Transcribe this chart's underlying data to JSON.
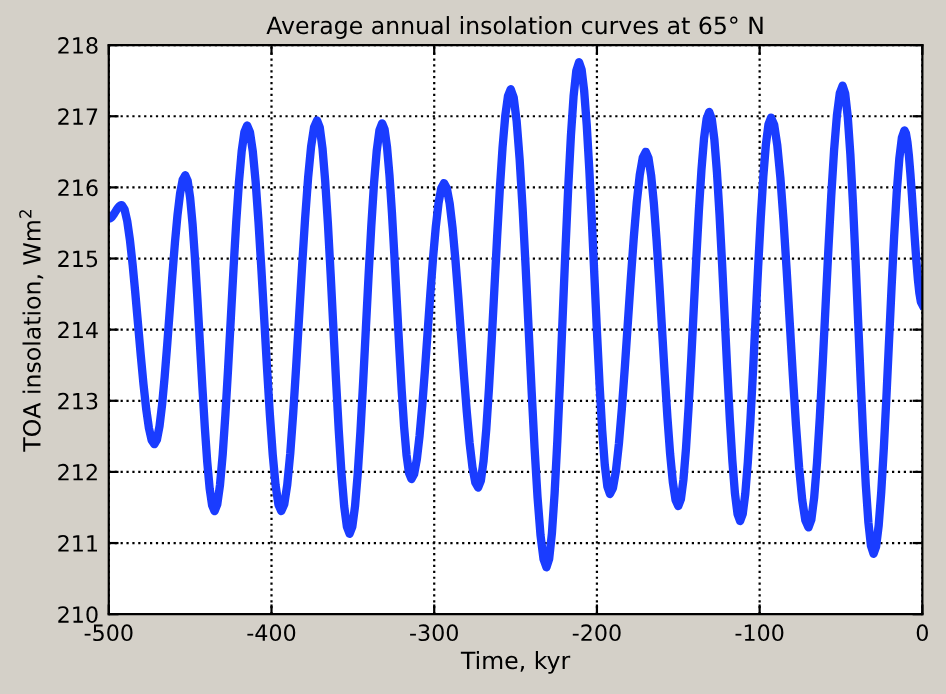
{
  "chart_data": {
    "type": "line",
    "title": "Average annual insolation curves at 65° N",
    "xlabel": "Time, kyr",
    "ylabel": "TOA insolation, Wm$^{2}$",
    "x": [
      -500,
      -492,
      -472,
      -453,
      -435,
      -415,
      -394,
      -372,
      -352,
      -332,
      -314,
      -294,
      -273,
      -253,
      -231,
      -211,
      -192,
      -170,
      -150,
      -131,
      -112,
      -93,
      -70,
      -49,
      -30,
      -11,
      0
    ],
    "series": [
      {
        "color": "#1a3cff",
        "values": [
          215.56,
          215.75,
          212.39,
          216.17,
          211.45,
          216.87,
          211.45,
          216.94,
          211.13,
          216.9,
          211.9,
          216.06,
          211.78,
          217.38,
          210.66,
          217.76,
          211.69,
          216.5,
          211.52,
          217.06,
          211.31,
          216.98,
          211.22,
          217.43,
          210.85,
          216.8,
          214.35
        ]
      }
    ],
    "xlim": [
      -500,
      0
    ],
    "xticks": [
      -500,
      -400,
      -300,
      -200,
      -100,
      0
    ],
    "ylim": [
      210,
      218
    ],
    "yticks": [
      210,
      211,
      212,
      213,
      214,
      215,
      216,
      217,
      218
    ],
    "grid": true,
    "marker": "none",
    "line_style": "solid"
  }
}
